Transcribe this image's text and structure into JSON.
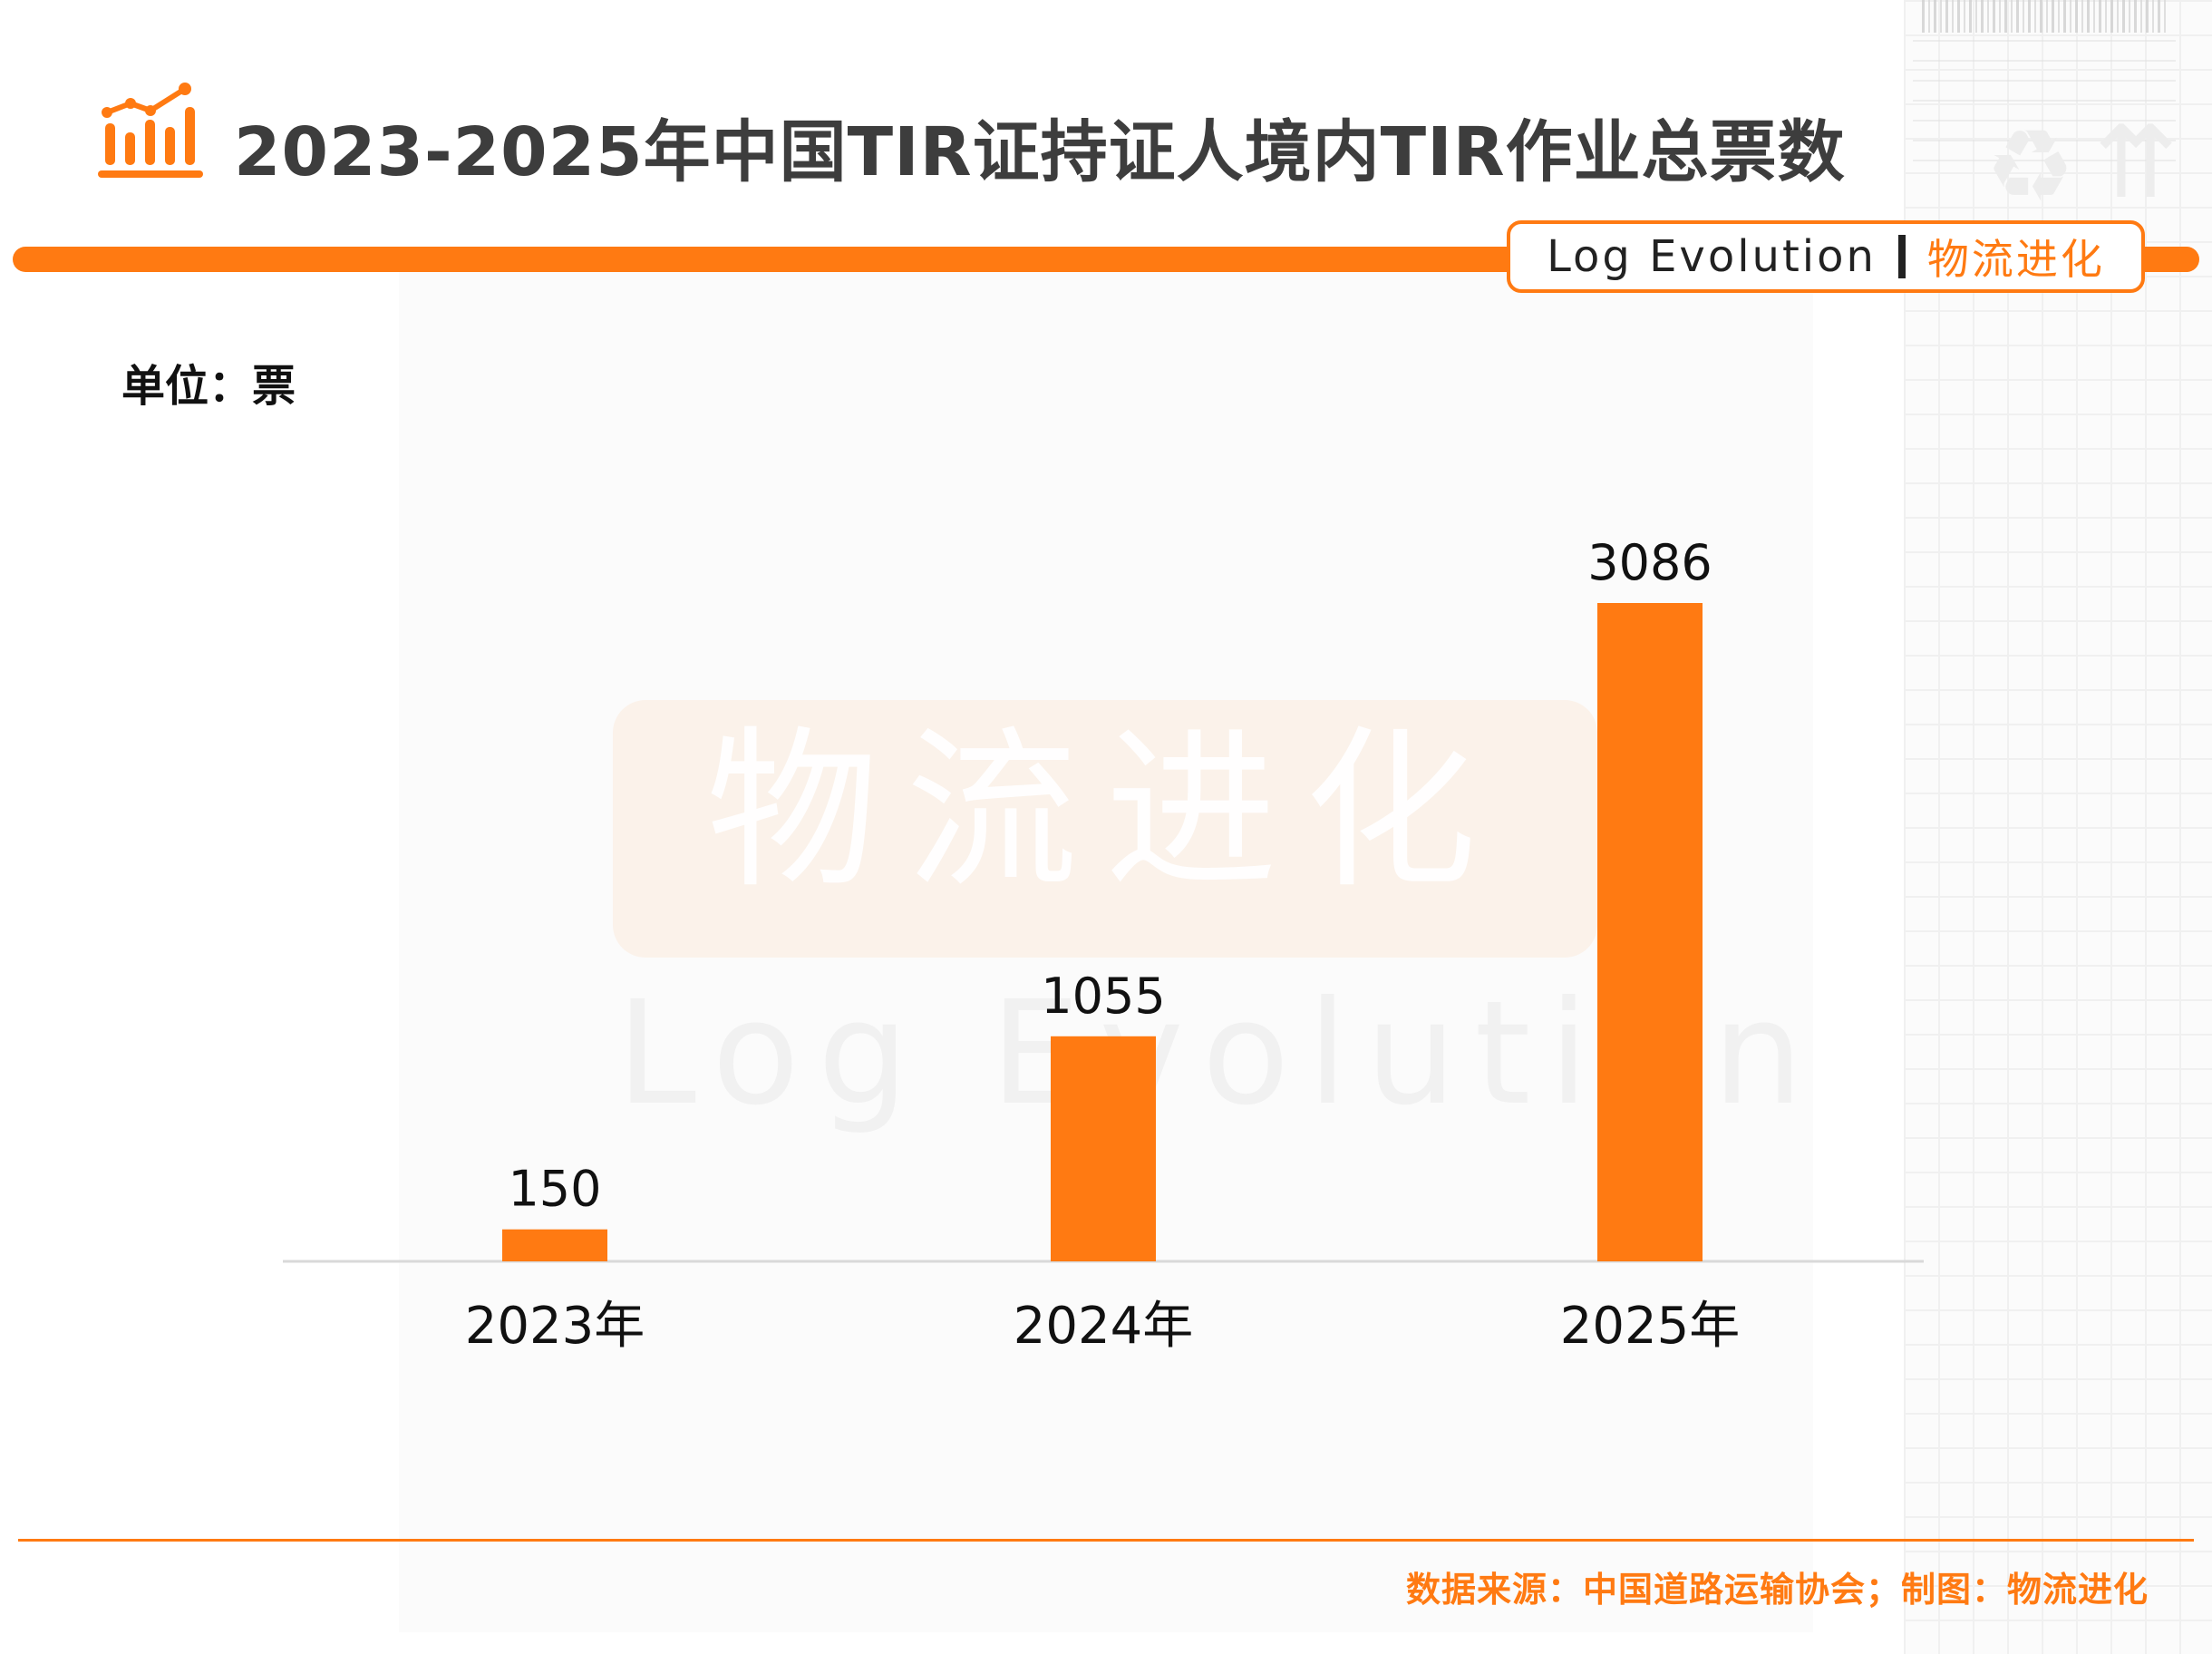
{
  "header": {
    "title": "2023-2025年中国TIR证持证人境内TIR作业总票数",
    "icon": "bar-chart-trend-icon"
  },
  "brand": {
    "name_en": "Log Evolution",
    "name_cn": "物流进化"
  },
  "watermark": {
    "cn": "物流进化",
    "en": "Log Evolution"
  },
  "unit_label": "单位：票",
  "footer": {
    "source": "数据来源：中国道路运输协会；制图：物流进化"
  },
  "colors": {
    "accent": "#ff7a12",
    "bar": "#ff7a12",
    "text": "#111111"
  },
  "chart_data": {
    "type": "bar",
    "categories": [
      "2023年",
      "2024年",
      "2025年"
    ],
    "values": [
      150,
      1055,
      3086
    ],
    "data_labels": [
      "150",
      "1055",
      "3086"
    ],
    "ylabel": "单位：票",
    "ylim": [
      0,
      3086
    ],
    "grid": false,
    "legend": "none"
  }
}
